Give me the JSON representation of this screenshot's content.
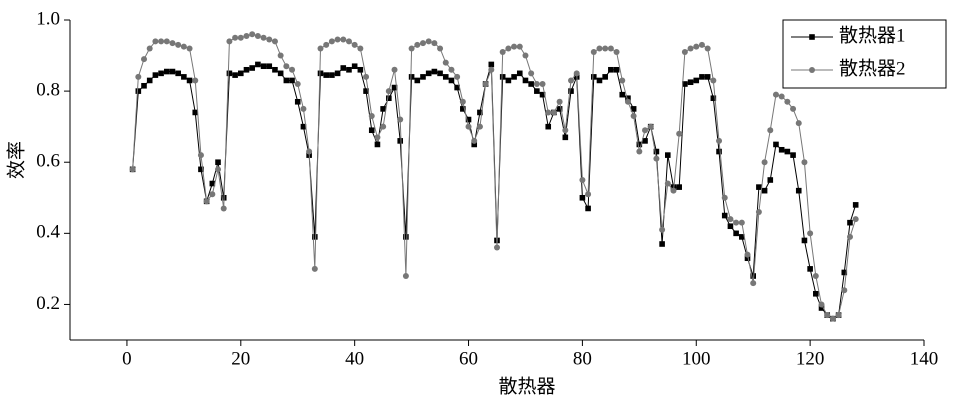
{
  "chart_data": {
    "type": "line",
    "x_label": "散热器",
    "y_label": "效率",
    "x": [
      1,
      2,
      3,
      4,
      5,
      6,
      7,
      8,
      9,
      10,
      11,
      12,
      13,
      14,
      15,
      16,
      17,
      18,
      19,
      20,
      21,
      22,
      23,
      24,
      25,
      26,
      27,
      28,
      29,
      30,
      31,
      32,
      33,
      34,
      35,
      36,
      37,
      38,
      39,
      40,
      41,
      42,
      43,
      44,
      45,
      46,
      47,
      48,
      49,
      50,
      51,
      52,
      53,
      54,
      55,
      56,
      57,
      58,
      59,
      60,
      61,
      62,
      63,
      64,
      65,
      66,
      67,
      68,
      69,
      70,
      71,
      72,
      73,
      74,
      75,
      76,
      77,
      78,
      79,
      80,
      81,
      82,
      83,
      84,
      85,
      86,
      87,
      88,
      89,
      90,
      91,
      92,
      93,
      94,
      95,
      96,
      97,
      98,
      99,
      100,
      101,
      102,
      103,
      104,
      105,
      106,
      107,
      108,
      109,
      110,
      111,
      112,
      113,
      114,
      115,
      116,
      117,
      118,
      119,
      120,
      121,
      122,
      123,
      124,
      125,
      126,
      127,
      128
    ],
    "series": [
      {
        "name": "散热器1",
        "color": "#000000",
        "marker": "square",
        "values": [
          0.58,
          0.8,
          0.815,
          0.83,
          0.845,
          0.85,
          0.855,
          0.855,
          0.85,
          0.84,
          0.83,
          0.74,
          0.58,
          0.49,
          0.54,
          0.6,
          0.5,
          0.85,
          0.845,
          0.85,
          0.86,
          0.865,
          0.875,
          0.87,
          0.87,
          0.86,
          0.85,
          0.83,
          0.83,
          0.77,
          0.7,
          0.62,
          0.39,
          0.85,
          0.845,
          0.845,
          0.85,
          0.865,
          0.86,
          0.87,
          0.86,
          0.8,
          0.69,
          0.65,
          0.75,
          0.78,
          0.81,
          0.66,
          0.39,
          0.84,
          0.83,
          0.84,
          0.85,
          0.855,
          0.85,
          0.84,
          0.83,
          0.81,
          0.75,
          0.72,
          0.65,
          0.74,
          0.82,
          0.875,
          0.38,
          0.84,
          0.83,
          0.84,
          0.85,
          0.83,
          0.82,
          0.8,
          0.79,
          0.7,
          0.74,
          0.75,
          0.67,
          0.8,
          0.84,
          0.5,
          0.47,
          0.84,
          0.83,
          0.84,
          0.86,
          0.86,
          0.79,
          0.78,
          0.75,
          0.65,
          0.66,
          0.7,
          0.63,
          0.37,
          0.62,
          0.53,
          0.53,
          0.82,
          0.825,
          0.83,
          0.84,
          0.84,
          0.78,
          0.63,
          0.45,
          0.42,
          0.4,
          0.39,
          0.33,
          0.28,
          0.53,
          0.52,
          0.55,
          0.65,
          0.635,
          0.63,
          0.62,
          0.52,
          0.38,
          0.3,
          0.23,
          0.19,
          0.17,
          0.16,
          0.17,
          0.29,
          0.43,
          0.48
        ]
      },
      {
        "name": "散热器2",
        "color": "#777777",
        "marker": "circle",
        "values": [
          0.58,
          0.84,
          0.89,
          0.92,
          0.94,
          0.94,
          0.94,
          0.935,
          0.93,
          0.925,
          0.92,
          0.83,
          0.62,
          0.49,
          0.51,
          0.58,
          0.47,
          0.94,
          0.95,
          0.95,
          0.955,
          0.96,
          0.955,
          0.95,
          0.945,
          0.94,
          0.9,
          0.87,
          0.86,
          0.82,
          0.75,
          0.63,
          0.3,
          0.92,
          0.93,
          0.94,
          0.945,
          0.945,
          0.94,
          0.93,
          0.92,
          0.84,
          0.73,
          0.67,
          0.7,
          0.8,
          0.86,
          0.72,
          0.28,
          0.92,
          0.93,
          0.935,
          0.94,
          0.935,
          0.92,
          0.88,
          0.86,
          0.84,
          0.77,
          0.7,
          0.66,
          0.7,
          0.82,
          0.86,
          0.36,
          0.91,
          0.92,
          0.925,
          0.925,
          0.9,
          0.85,
          0.82,
          0.82,
          0.74,
          0.74,
          0.77,
          0.69,
          0.83,
          0.85,
          0.55,
          0.51,
          0.91,
          0.92,
          0.92,
          0.92,
          0.91,
          0.83,
          0.77,
          0.73,
          0.63,
          0.69,
          0.7,
          0.61,
          0.41,
          0.54,
          0.52,
          0.68,
          0.91,
          0.92,
          0.925,
          0.93,
          0.92,
          0.83,
          0.66,
          0.5,
          0.44,
          0.43,
          0.43,
          0.34,
          0.26,
          0.46,
          0.6,
          0.69,
          0.79,
          0.785,
          0.77,
          0.75,
          0.71,
          0.6,
          0.4,
          0.28,
          0.2,
          0.17,
          0.16,
          0.17,
          0.24,
          0.39,
          0.44
        ]
      }
    ],
    "xlim": [
      -10,
      140
    ],
    "xticks": [
      0,
      20,
      40,
      60,
      80,
      100,
      120,
      140
    ],
    "ylim": [
      0.1,
      1.0
    ],
    "yticks": [
      0.2,
      0.4,
      0.6,
      0.8,
      {
        "value": 1.0,
        "label": "1.0"
      }
    ],
    "legend": "upper right",
    "grid": false
  }
}
